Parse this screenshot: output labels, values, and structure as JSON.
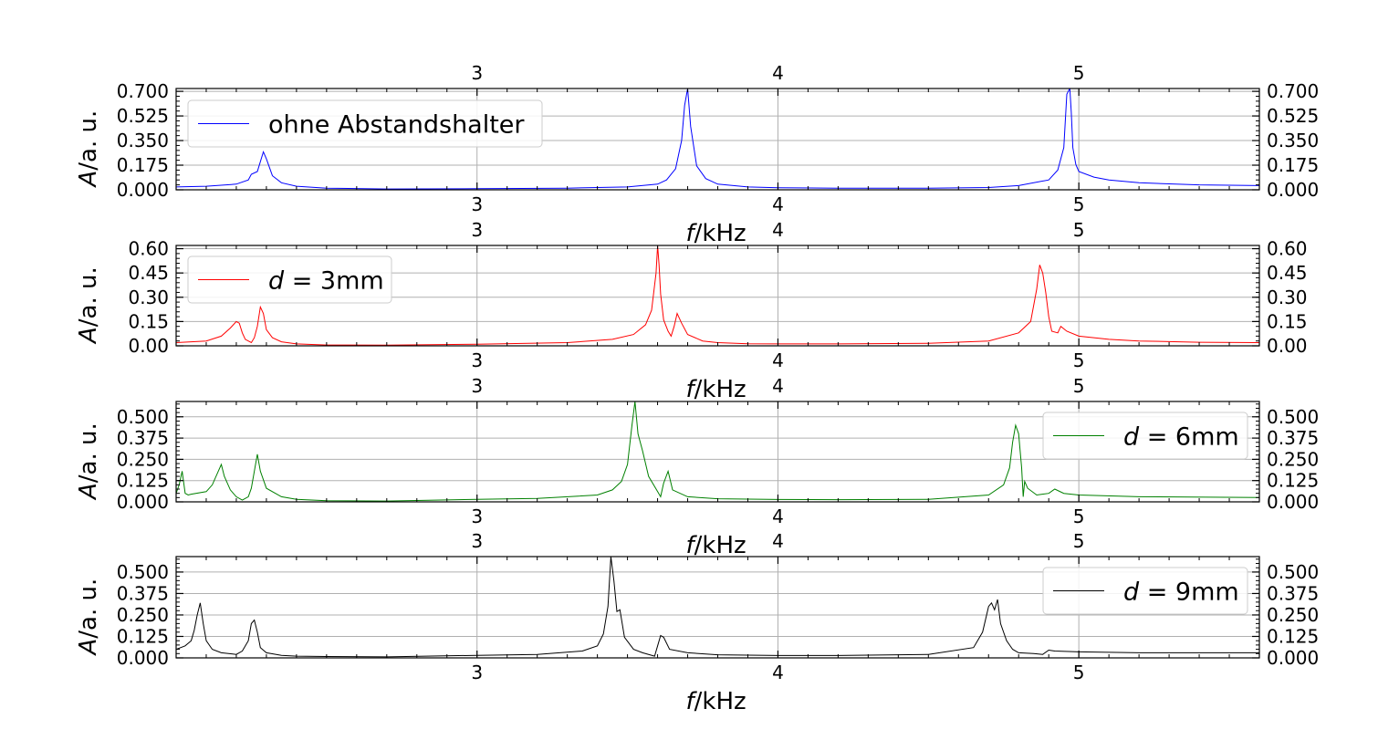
{
  "chart_data": [
    {
      "type": "line",
      "xlabel_prefix": "f",
      "xlabel_unit": "/kHz",
      "ylabel_prefix": "A",
      "ylabel_unit": "/a. u.",
      "xlim": [
        2.0,
        5.6
      ],
      "ylim": [
        0,
        0.72
      ],
      "xticks": [
        3,
        4,
        5
      ],
      "xtick_labels": [
        "3",
        "4",
        "5"
      ],
      "yticks": [
        0,
        0.175,
        0.35,
        0.525,
        0.7
      ],
      "ytick_labels": [
        "0.000",
        "0.175",
        "0.350",
        "0.525",
        "0.700"
      ],
      "grid": true,
      "legend_position": "upper-left",
      "series": [
        {
          "name": "ohne Abstandshalter",
          "color": "#0000ff",
          "x": [
            2.0,
            2.1,
            2.2,
            2.24,
            2.25,
            2.27,
            2.28,
            2.29,
            2.3,
            2.32,
            2.35,
            2.4,
            2.5,
            2.7,
            3.0,
            3.3,
            3.5,
            3.6,
            3.63,
            3.66,
            3.68,
            3.69,
            3.7,
            3.71,
            3.73,
            3.76,
            3.8,
            3.9,
            4.0,
            4.2,
            4.5,
            4.7,
            4.8,
            4.9,
            4.93,
            4.95,
            4.96,
            4.965,
            4.97,
            4.975,
            4.98,
            4.99,
            5.0,
            5.05,
            5.1,
            5.2,
            5.4,
            5.6
          ],
          "y": [
            0.02,
            0.025,
            0.04,
            0.07,
            0.11,
            0.13,
            0.2,
            0.27,
            0.22,
            0.1,
            0.05,
            0.025,
            0.012,
            0.006,
            0.008,
            0.012,
            0.02,
            0.04,
            0.07,
            0.15,
            0.35,
            0.6,
            0.72,
            0.45,
            0.17,
            0.08,
            0.04,
            0.02,
            0.015,
            0.012,
            0.012,
            0.016,
            0.03,
            0.07,
            0.14,
            0.3,
            0.68,
            0.7,
            0.72,
            0.55,
            0.3,
            0.18,
            0.13,
            0.09,
            0.07,
            0.05,
            0.035,
            0.03
          ]
        }
      ]
    },
    {
      "type": "line",
      "xlabel_prefix": "f",
      "xlabel_unit": "/kHz",
      "ylabel_prefix": "A",
      "ylabel_unit": "/a. u.",
      "xlim": [
        2.0,
        5.6
      ],
      "ylim": [
        0,
        0.62
      ],
      "xticks": [
        3,
        4,
        5
      ],
      "xtick_labels": [
        "3",
        "4",
        "5"
      ],
      "yticks": [
        0,
        0.15,
        0.3,
        0.45,
        0.6
      ],
      "ytick_labels": [
        "0.00",
        "0.15",
        "0.30",
        "0.45",
        "0.60"
      ],
      "grid": true,
      "legend_position": "upper-left",
      "series": [
        {
          "name": "d = 3mm",
          "color": "#ff0000",
          "x": [
            2.0,
            2.1,
            2.15,
            2.18,
            2.2,
            2.21,
            2.22,
            2.23,
            2.25,
            2.26,
            2.27,
            2.28,
            2.29,
            2.3,
            2.32,
            2.35,
            2.4,
            2.5,
            2.7,
            3.0,
            3.3,
            3.45,
            3.52,
            3.56,
            3.58,
            3.595,
            3.6,
            3.605,
            3.61,
            3.62,
            3.635,
            3.645,
            3.655,
            3.665,
            3.68,
            3.7,
            3.75,
            3.8,
            3.9,
            4.0,
            4.2,
            4.5,
            4.7,
            4.8,
            4.84,
            4.86,
            4.87,
            4.88,
            4.89,
            4.9,
            4.91,
            4.93,
            4.94,
            4.96,
            5.0,
            5.1,
            5.2,
            5.4,
            5.6
          ],
          "y": [
            0.02,
            0.03,
            0.06,
            0.11,
            0.15,
            0.14,
            0.08,
            0.04,
            0.02,
            0.05,
            0.12,
            0.24,
            0.2,
            0.1,
            0.05,
            0.025,
            0.012,
            0.005,
            0.004,
            0.01,
            0.02,
            0.04,
            0.07,
            0.13,
            0.22,
            0.45,
            0.62,
            0.5,
            0.32,
            0.16,
            0.09,
            0.06,
            0.12,
            0.2,
            0.14,
            0.07,
            0.03,
            0.02,
            0.013,
            0.012,
            0.012,
            0.015,
            0.03,
            0.08,
            0.15,
            0.35,
            0.5,
            0.45,
            0.33,
            0.18,
            0.09,
            0.08,
            0.12,
            0.09,
            0.06,
            0.04,
            0.03,
            0.022,
            0.02
          ]
        }
      ]
    },
    {
      "type": "line",
      "xlabel_prefix": "f",
      "xlabel_unit": "/kHz",
      "ylabel_prefix": "A",
      "ylabel_unit": "/a. u.",
      "xlim": [
        2.0,
        5.6
      ],
      "ylim": [
        0,
        0.59
      ],
      "xticks": [
        3,
        4,
        5
      ],
      "xtick_labels": [
        "3",
        "4",
        "5"
      ],
      "yticks": [
        0,
        0.125,
        0.25,
        0.375,
        0.5
      ],
      "ytick_labels": [
        "0.000",
        "0.125",
        "0.250",
        "0.375",
        "0.500"
      ],
      "grid": true,
      "legend_position": "upper-right",
      "series": [
        {
          "name": "d = 6mm",
          "color": "#008000",
          "x": [
            2.0,
            2.01,
            2.02,
            2.03,
            2.04,
            2.05,
            2.1,
            2.12,
            2.14,
            2.15,
            2.16,
            2.18,
            2.2,
            2.22,
            2.24,
            2.25,
            2.26,
            2.27,
            2.28,
            2.3,
            2.35,
            2.4,
            2.5,
            2.7,
            3.0,
            3.2,
            3.4,
            3.45,
            3.48,
            3.5,
            3.515,
            3.525,
            3.535,
            3.55,
            3.57,
            3.6,
            3.61,
            3.62,
            3.635,
            3.65,
            3.7,
            3.8,
            4.0,
            4.2,
            4.5,
            4.7,
            4.75,
            4.77,
            4.78,
            4.79,
            4.8,
            4.81,
            4.815,
            4.82,
            4.83,
            4.86,
            4.9,
            4.92,
            4.95,
            5.0,
            5.2,
            5.6
          ],
          "y": [
            0.05,
            0.1,
            0.18,
            0.05,
            0.04,
            0.045,
            0.06,
            0.1,
            0.18,
            0.22,
            0.15,
            0.07,
            0.03,
            0.01,
            0.03,
            0.08,
            0.18,
            0.28,
            0.18,
            0.08,
            0.03,
            0.015,
            0.007,
            0.005,
            0.015,
            0.02,
            0.04,
            0.07,
            0.12,
            0.22,
            0.45,
            0.59,
            0.4,
            0.3,
            0.15,
            0.06,
            0.03,
            0.11,
            0.18,
            0.07,
            0.03,
            0.018,
            0.014,
            0.013,
            0.015,
            0.04,
            0.1,
            0.2,
            0.35,
            0.45,
            0.4,
            0.2,
            0.03,
            0.12,
            0.08,
            0.04,
            0.05,
            0.075,
            0.05,
            0.04,
            0.03,
            0.025
          ]
        }
      ]
    },
    {
      "type": "line",
      "xlabel": "f/kHz",
      "xlabel_prefix": "f",
      "xlabel_unit": "/kHz",
      "ylabel_prefix": "A",
      "ylabel_unit": "/a. u.",
      "xlim": [
        2.0,
        5.6
      ],
      "ylim": [
        0,
        0.59
      ],
      "xticks": [
        3,
        4,
        5
      ],
      "xtick_labels": [
        "3",
        "4",
        "5"
      ],
      "yticks": [
        0,
        0.125,
        0.25,
        0.375,
        0.5
      ],
      "ytick_labels": [
        "0.000",
        "0.125",
        "0.250",
        "0.375",
        "0.500"
      ],
      "grid": true,
      "legend_position": "upper-right",
      "series": [
        {
          "name": "d = 9mm",
          "color": "#000000",
          "x": [
            2.0,
            2.03,
            2.05,
            2.06,
            2.07,
            2.08,
            2.09,
            2.1,
            2.12,
            2.15,
            2.2,
            2.22,
            2.24,
            2.25,
            2.26,
            2.27,
            2.28,
            2.3,
            2.35,
            2.4,
            2.5,
            2.7,
            3.0,
            3.2,
            3.35,
            3.4,
            3.42,
            3.435,
            3.445,
            3.455,
            3.465,
            3.475,
            3.49,
            3.52,
            3.55,
            3.59,
            3.6,
            3.61,
            3.62,
            3.64,
            3.7,
            3.8,
            4.0,
            4.2,
            4.5,
            4.65,
            4.68,
            4.7,
            4.71,
            4.72,
            4.73,
            4.74,
            4.76,
            4.78,
            4.8,
            4.85,
            4.88,
            4.9,
            4.92,
            5.0,
            5.2,
            5.6
          ],
          "y": [
            0.05,
            0.07,
            0.1,
            0.16,
            0.25,
            0.32,
            0.2,
            0.1,
            0.05,
            0.03,
            0.02,
            0.04,
            0.1,
            0.2,
            0.22,
            0.15,
            0.06,
            0.03,
            0.015,
            0.01,
            0.008,
            0.006,
            0.015,
            0.02,
            0.04,
            0.07,
            0.14,
            0.3,
            0.59,
            0.45,
            0.27,
            0.28,
            0.12,
            0.05,
            0.03,
            0.01,
            0.07,
            0.13,
            0.12,
            0.05,
            0.03,
            0.018,
            0.014,
            0.014,
            0.02,
            0.06,
            0.15,
            0.3,
            0.32,
            0.28,
            0.34,
            0.2,
            0.1,
            0.05,
            0.03,
            0.025,
            0.02,
            0.045,
            0.04,
            0.035,
            0.03,
            0.03
          ]
        }
      ]
    }
  ]
}
